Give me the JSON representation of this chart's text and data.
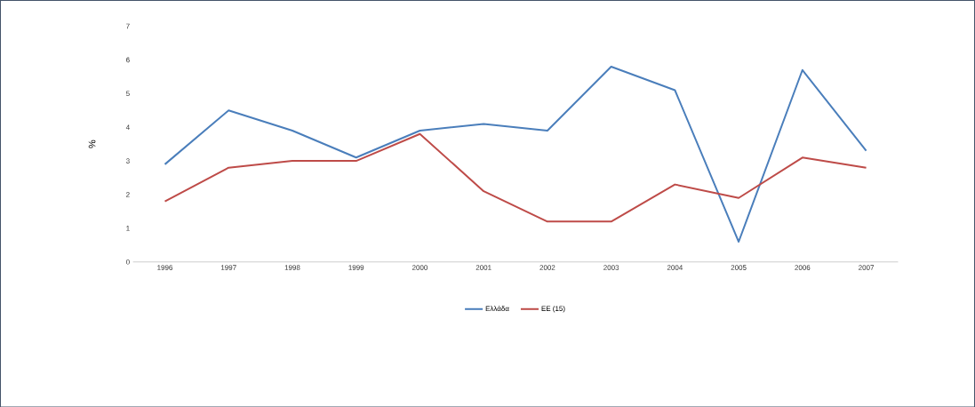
{
  "chart_data": {
    "type": "line",
    "ylabel": "%",
    "categories": [
      "1996",
      "1997",
      "1998",
      "1999",
      "2000",
      "2001",
      "2002",
      "2003",
      "2004",
      "2005",
      "2006",
      "2007"
    ],
    "series": [
      {
        "name": "Ελλάδα",
        "color": "#4a7ebb",
        "values": [
          2.9,
          4.5,
          3.9,
          3.1,
          3.9,
          4.1,
          3.9,
          5.8,
          5.1,
          0.6,
          5.7,
          3.3
        ]
      },
      {
        "name": "ΕΕ (15)",
        "color": "#be4b48",
        "values": [
          1.8,
          2.8,
          3.0,
          3.0,
          3.8,
          2.1,
          1.2,
          1.2,
          2.3,
          1.9,
          3.1,
          2.8
        ]
      }
    ],
    "ylim": [
      0,
      7
    ],
    "yticks": [
      0,
      1,
      2,
      3,
      4,
      5,
      6,
      7
    ],
    "grid": false,
    "legend": "bottom",
    "marker": "none",
    "line_style": "solid"
  }
}
